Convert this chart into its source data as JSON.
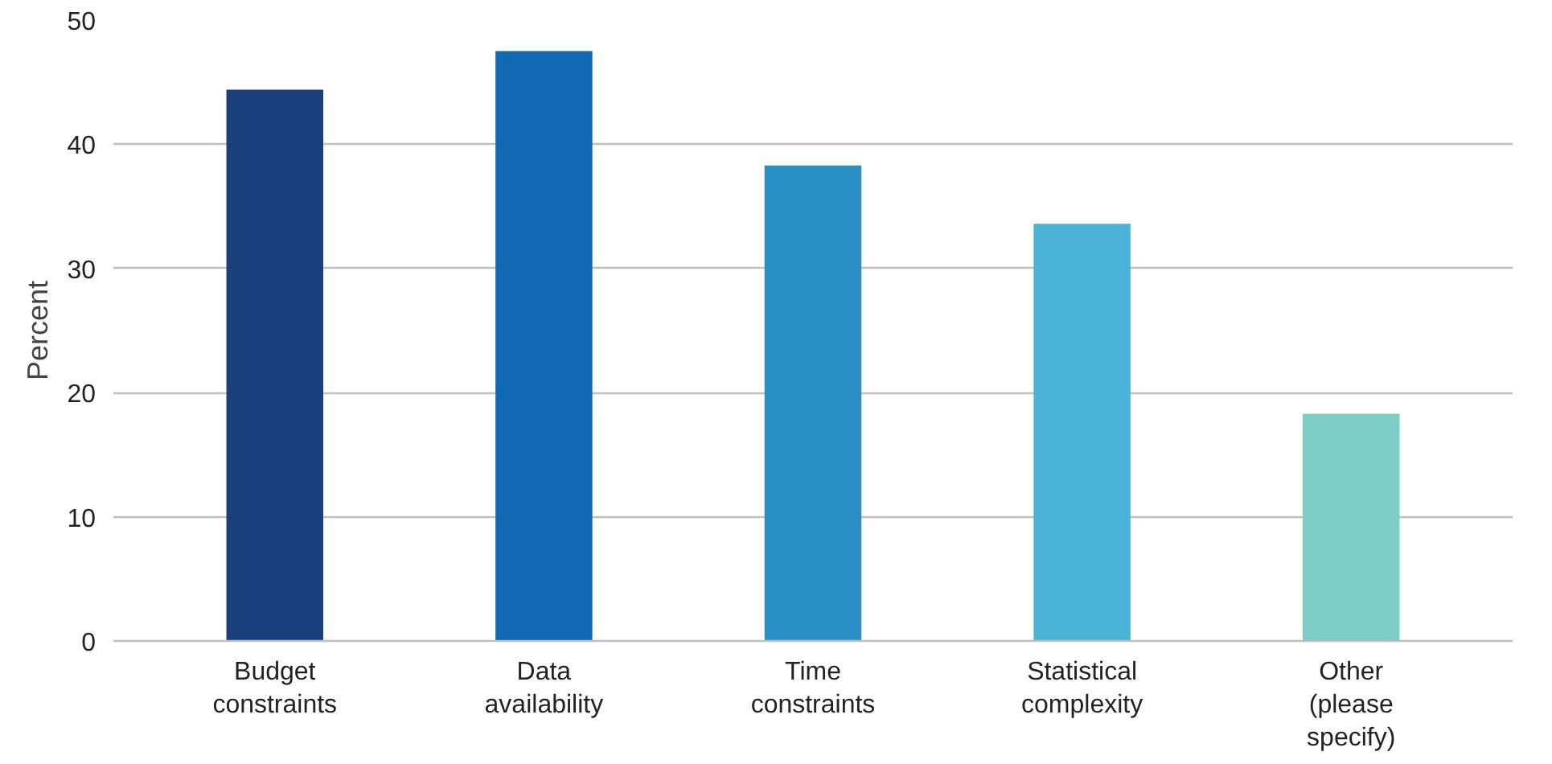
{
  "chart_data": {
    "type": "bar",
    "ylabel": "Percent",
    "categories": [
      "Budget\nconstraints",
      "Data\navailability",
      "Time\nconstraints",
      "Statistical\ncomplexity",
      "Other\n(please\nspecify)"
    ],
    "values": [
      44.4,
      47.5,
      38.3,
      33.6,
      18.3
    ],
    "colors": [
      "#1b3f7c",
      "#1068b0",
      "#2a8fc4",
      "#4ab3d6",
      "#7ccdc4"
    ],
    "ylim": [
      0,
      50
    ],
    "yticks": [
      0,
      10,
      20,
      30,
      40,
      50
    ],
    "grid": "y"
  }
}
